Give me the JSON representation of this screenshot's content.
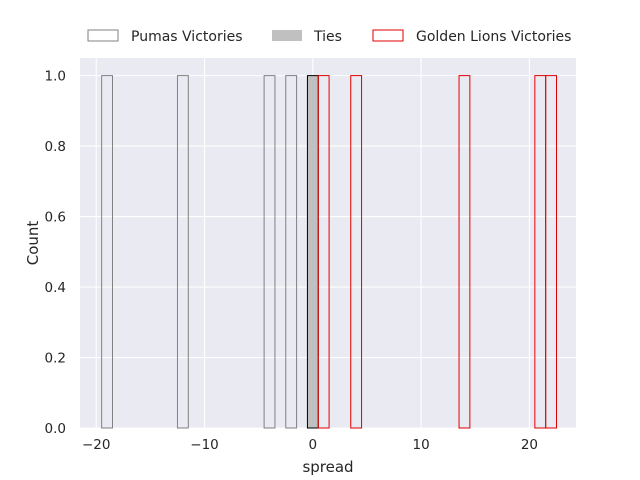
{
  "chart_data": {
    "type": "bar",
    "xlabel": "spread",
    "ylabel": "Count",
    "xlim": [
      -21.5,
      24.3
    ],
    "ylim": [
      0,
      1.05
    ],
    "xticks": [
      -20,
      -10,
      0,
      10,
      20
    ],
    "xtick_labels": [
      "−20",
      "−10",
      "0",
      "10",
      "20"
    ],
    "yticks": [
      0.0,
      0.2,
      0.4,
      0.6,
      0.8,
      1.0
    ],
    "ytick_labels": [
      "0.0",
      "0.2",
      "0.4",
      "0.6",
      "0.8",
      "1.0"
    ],
    "grid": true,
    "legend_position": "top",
    "bin_width": 1,
    "series": [
      {
        "name": "Pumas Victories",
        "edgecolor": "#808080",
        "fill": "none",
        "bins": [
          {
            "x0": -19.5,
            "x1": -18.5,
            "count": 1
          },
          {
            "x0": -12.5,
            "x1": -11.5,
            "count": 1
          },
          {
            "x0": -4.5,
            "x1": -3.5,
            "count": 1
          },
          {
            "x0": -2.5,
            "x1": -1.5,
            "count": 1
          }
        ]
      },
      {
        "name": "Ties",
        "edgecolor": "#000000",
        "fill": "#c0c0c0",
        "bins": [
          {
            "x0": -0.5,
            "x1": 0.5,
            "count": 1
          }
        ]
      },
      {
        "name": "Golden Lions Victories",
        "edgecolor": "#e00000",
        "fill": "none",
        "bins": [
          {
            "x0": 0.5,
            "x1": 1.5,
            "count": 1
          },
          {
            "x0": 3.5,
            "x1": 4.5,
            "count": 1
          },
          {
            "x0": 13.5,
            "x1": 14.5,
            "count": 1
          },
          {
            "x0": 20.5,
            "x1": 21.5,
            "count": 1
          },
          {
            "x0": 21.5,
            "x1": 22.5,
            "count": 1
          }
        ]
      }
    ]
  },
  "colors": {
    "plot_background": "#eaeaf2",
    "grid": "#ffffff"
  }
}
